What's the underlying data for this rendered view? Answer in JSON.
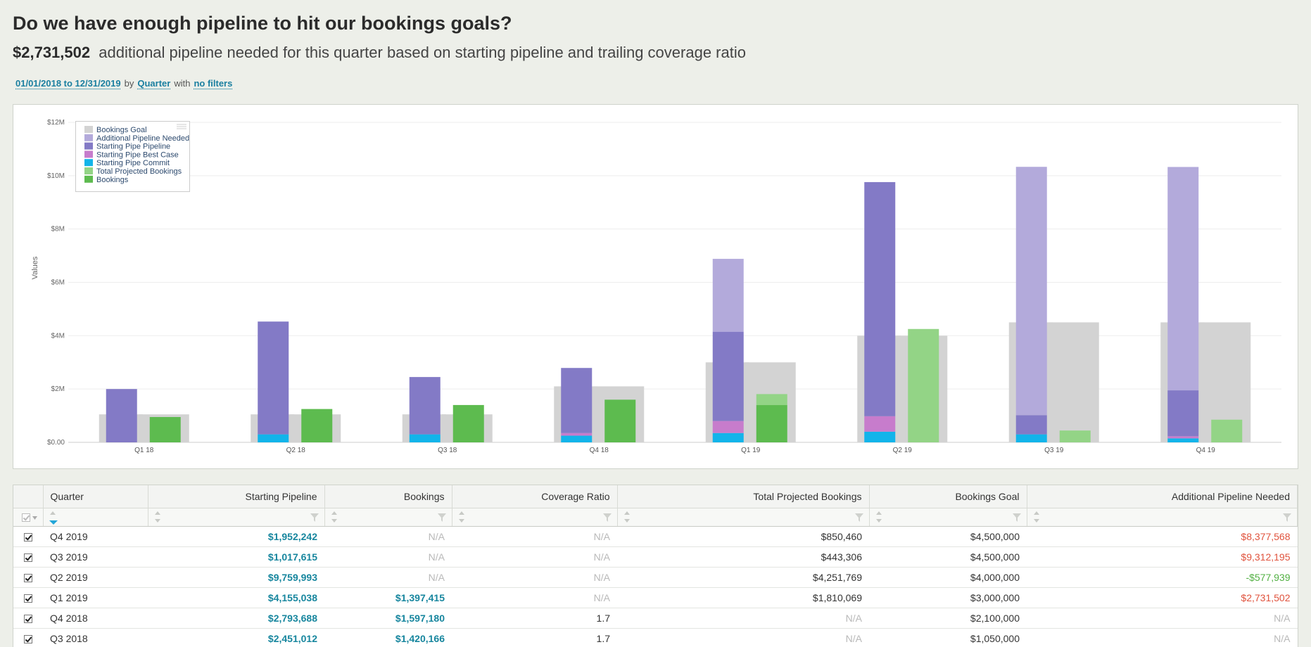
{
  "header": {
    "title": "Do we have enough pipeline to hit our bookings goals?",
    "amount": "$2,731,502",
    "subtitle": "additional pipeline needed for this quarter based on starting pipeline and trailing coverage ratio"
  },
  "filters": {
    "date_range": "01/01/2018 to 12/31/2019",
    "by_label": "by",
    "group_by": "Quarter",
    "with_label": "with",
    "filter": "no filters"
  },
  "colors": {
    "goal": "#d3d3d3",
    "additional": "#b3aadb",
    "pipeline": "#837ac6",
    "best_case": "#c77ccc",
    "commit": "#12b4ea",
    "projected": "#93d486",
    "bookings": "#5dbb4f",
    "teal_text": "#17869e",
    "negative": "#e0533d",
    "positive": "#52b043"
  },
  "chart_data": {
    "type": "bar",
    "ylabel": "Values",
    "ylim": [
      0,
      12000000
    ],
    "y_ticks": [
      "$0.00",
      "$2M",
      "$4M",
      "$6M",
      "$8M",
      "$10M",
      "$12M"
    ],
    "y_tick_values": [
      0,
      2000000,
      4000000,
      6000000,
      8000000,
      10000000,
      12000000
    ],
    "categories": [
      "Q1 18",
      "Q2 18",
      "Q3 18",
      "Q4 18",
      "Q1 19",
      "Q2 19",
      "Q3 19",
      "Q4 19"
    ],
    "legend": [
      {
        "name": "Bookings Goal",
        "key": "goal"
      },
      {
        "name": "Additional Pipeline Needed",
        "key": "additional"
      },
      {
        "name": "Starting Pipe Pipeline",
        "key": "pipeline"
      },
      {
        "name": "Starting Pipe Best Case",
        "key": "best_case"
      },
      {
        "name": "Starting Pipe Commit",
        "key": "commit"
      },
      {
        "name": "Total Projected Bookings",
        "key": "projected"
      },
      {
        "name": "Bookings",
        "key": "bookings"
      }
    ],
    "series": {
      "goal": [
        1050000,
        1050000,
        1050000,
        2100000,
        3000000,
        4000000,
        4500000,
        4500000
      ],
      "commit": [
        0,
        300000,
        300000,
        250000,
        350000,
        400000,
        300000,
        150000
      ],
      "best_case": [
        0,
        0,
        0,
        100000,
        450000,
        580000,
        0,
        80000
      ],
      "pipeline": [
        2000000,
        4230000,
        2150000,
        2440000,
        3350000,
        8780000,
        720000,
        1720000
      ],
      "additional": [
        0,
        0,
        0,
        0,
        2731502,
        0,
        9312195,
        8377568
      ],
      "projected": [
        0,
        0,
        0,
        0,
        1810069,
        4251769,
        443306,
        850460
      ],
      "bookings": [
        950000,
        1250000,
        1400000,
        1600000,
        1397415,
        0,
        0,
        0
      ]
    }
  },
  "table": {
    "columns": [
      "Quarter",
      "Starting Pipeline",
      "Bookings",
      "Coverage Ratio",
      "Total Projected Bookings",
      "Bookings Goal",
      "Additional Pipeline Needed"
    ],
    "rows": [
      {
        "quarter": "Q4 2019",
        "starting_pipeline": "$1,952,242",
        "bookings": "N/A",
        "coverage_ratio": "N/A",
        "total_projected": "$850,460",
        "goal": "$4,500,000",
        "additional": "$8,377,568"
      },
      {
        "quarter": "Q3 2019",
        "starting_pipeline": "$1,017,615",
        "bookings": "N/A",
        "coverage_ratio": "N/A",
        "total_projected": "$443,306",
        "goal": "$4,500,000",
        "additional": "$9,312,195"
      },
      {
        "quarter": "Q2 2019",
        "starting_pipeline": "$9,759,993",
        "bookings": "N/A",
        "coverage_ratio": "N/A",
        "total_projected": "$4,251,769",
        "goal": "$4,000,000",
        "additional": "-$577,939"
      },
      {
        "quarter": "Q1 2019",
        "starting_pipeline": "$4,155,038",
        "bookings": "$1,397,415",
        "coverage_ratio": "N/A",
        "total_projected": "$1,810,069",
        "goal": "$3,000,000",
        "additional": "$2,731,502"
      },
      {
        "quarter": "Q4 2018",
        "starting_pipeline": "$2,793,688",
        "bookings": "$1,597,180",
        "coverage_ratio": "1.7",
        "total_projected": "N/A",
        "goal": "$2,100,000",
        "additional": "N/A"
      },
      {
        "quarter": "Q3 2018",
        "starting_pipeline": "$2,451,012",
        "bookings": "$1,420,166",
        "coverage_ratio": "1.7",
        "total_projected": "N/A",
        "goal": "$1,050,000",
        "additional": "N/A"
      }
    ]
  }
}
